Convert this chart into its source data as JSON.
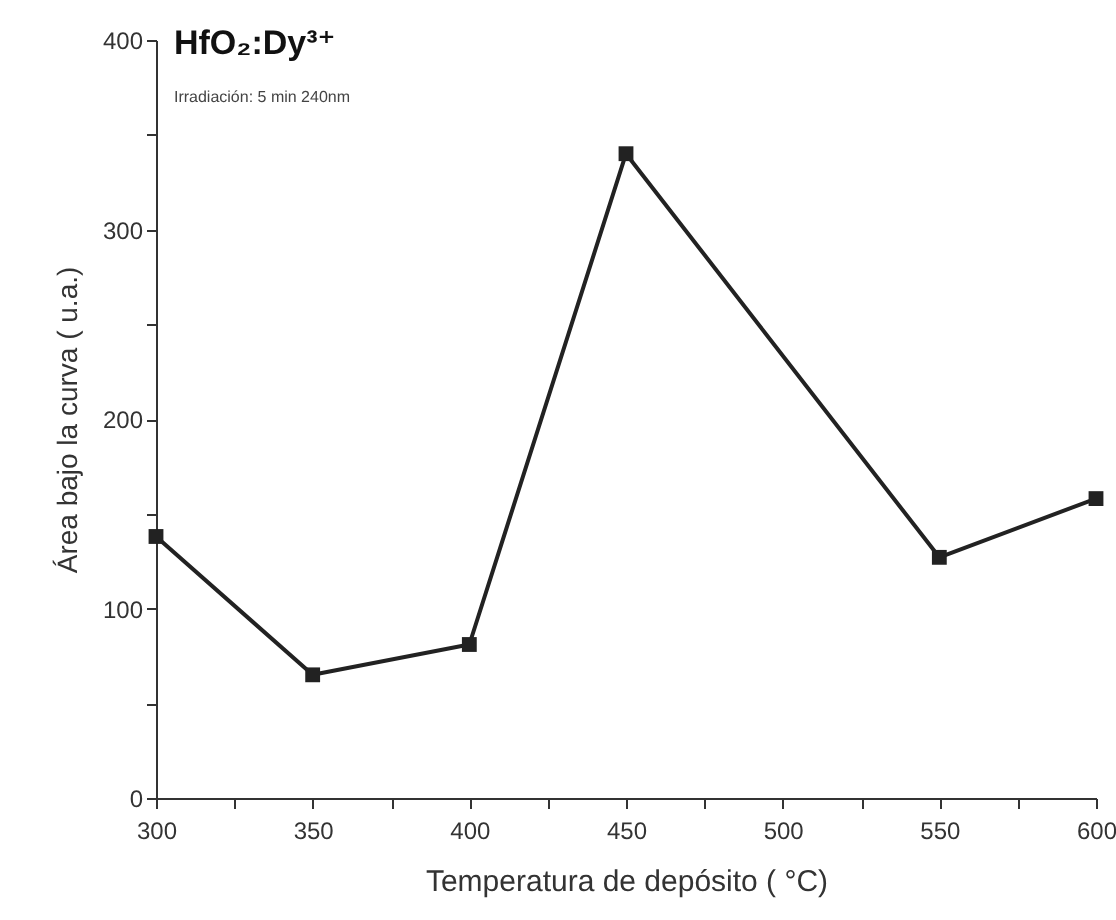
{
  "chart_data": {
    "type": "line",
    "title": "HfO₂:Dy³⁺",
    "subtitle": "Irradiación: 5 min 240nm",
    "xlabel": "Temperatura de depósito  ( °C)",
    "ylabel": "Área bajo la curva  ( u.a.)",
    "x": [
      300,
      350,
      400,
      450,
      550,
      600
    ],
    "series": [
      {
        "color": "#222222",
        "values": [
          138,
          65,
          81,
          340,
          127,
          158
        ]
      }
    ],
    "xlim": [
      300,
      600
    ],
    "ylim": [
      0,
      400
    ],
    "xticks": [
      300,
      {
        "value": 325,
        "label": null
      },
      350,
      {
        "value": 375,
        "label": null
      },
      400,
      {
        "value": 425,
        "label": null
      },
      450,
      {
        "value": 475,
        "label": null
      },
      500,
      {
        "value": 525,
        "label": null
      },
      550,
      {
        "value": 575,
        "label": null
      },
      600
    ],
    "yticks": [
      0,
      {
        "value": 50,
        "label": null
      },
      100,
      {
        "value": 150,
        "label": null
      },
      200,
      {
        "value": 250,
        "label": null
      },
      300,
      {
        "value": 350,
        "label": null
      },
      400
    ],
    "grid": false,
    "marker": "square",
    "line_style": "solid"
  }
}
